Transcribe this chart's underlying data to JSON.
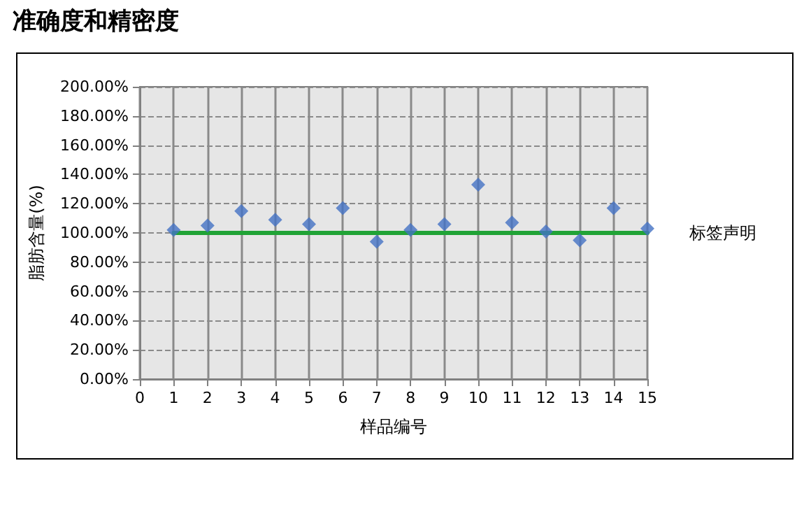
{
  "chart_data": {
    "type": "scatter",
    "title": "准确度和精密度",
    "xlabel": "样品编号",
    "ylabel": "脂肪含量(%)",
    "x": [
      1,
      2,
      3,
      4,
      5,
      6,
      7,
      8,
      9,
      10,
      11,
      12,
      13,
      14,
      15
    ],
    "series": [
      {
        "color": "#4472c4",
        "marker": "diamond",
        "values": [
          102,
          105,
          115,
          109,
          106,
          117,
          94,
          102,
          106,
          133,
          107,
          101,
          95,
          117,
          103
        ]
      },
      {
        "type": "line",
        "name": "标签声明",
        "color": "#21a336",
        "marker": "none",
        "line_style": "solid",
        "values": [
          100,
          100,
          100,
          100,
          100,
          100,
          100,
          100,
          100,
          100,
          100,
          100,
          100,
          100,
          100
        ]
      }
    ],
    "xlim": [
      0,
      15
    ],
    "xticks": [
      0,
      1,
      2,
      3,
      4,
      5,
      6,
      7,
      8,
      9,
      10,
      11,
      12,
      13,
      14,
      15
    ],
    "ylim": [
      0,
      200
    ],
    "yticks": [
      {
        "value": 0,
        "label": "0.00%"
      },
      {
        "value": 20,
        "label": "20.00%"
      },
      {
        "value": 40,
        "label": "40.00%"
      },
      {
        "value": 60,
        "label": "60.00%"
      },
      {
        "value": 80,
        "label": "80.00%"
      },
      {
        "value": 100,
        "label": "100.00%"
      },
      {
        "value": 120,
        "label": "120.00%"
      },
      {
        "value": 140,
        "label": "140.00%"
      },
      {
        "value": 160,
        "label": "160.00%"
      },
      {
        "value": 180,
        "label": "180.00%"
      },
      {
        "value": 200,
        "label": "200.00%"
      }
    ],
    "grid": true,
    "legend": false
  }
}
